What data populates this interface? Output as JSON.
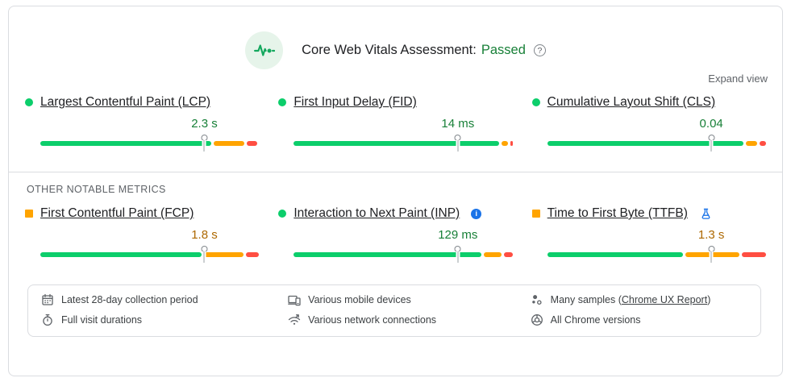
{
  "header": {
    "title": "Core Web Vitals Assessment:",
    "status": "Passed",
    "expand_link": "Expand view"
  },
  "icons": {
    "help": "?",
    "info": "i"
  },
  "other_metrics_label": "OTHER NOTABLE METRICS",
  "colors": {
    "good_bar": "#0cce6b",
    "average_bar": "#ffa400",
    "poor_bar": "#ff4e42",
    "good_text": "#188038",
    "average_text": "#ad6800",
    "passed_text": "#188038",
    "accent_blue": "#1a73e8",
    "badge_bg": "#e6f4ea"
  },
  "metrics": [
    {
      "name": "Largest Contentful Paint (LCP)",
      "value": "2.3 s",
      "rating": "good",
      "bar": {
        "good": 78,
        "average": 14,
        "poor": 5,
        "marker_pct": 75
      }
    },
    {
      "name": "First Input Delay (FID)",
      "value": "14 ms",
      "rating": "good",
      "bar": {
        "good": 94,
        "average": 3,
        "poor": 1,
        "marker_pct": 75
      }
    },
    {
      "name": "Cumulative Layout Shift (CLS)",
      "value": "0.04",
      "rating": "good",
      "bar": {
        "good": 90,
        "average": 5,
        "poor": 3,
        "marker_pct": 75
      }
    },
    {
      "name": "First Contentful Paint (FCP)",
      "value": "1.8 s",
      "rating": "average",
      "bar": {
        "good": 74,
        "average": 18,
        "poor": 6,
        "marker_pct": 75
      }
    },
    {
      "name": "Interaction to Next Paint (INP)",
      "value": "129 ms",
      "rating": "good",
      "extra_icon": "info-icon",
      "bar": {
        "good": 86,
        "average": 8,
        "poor": 4,
        "marker_pct": 75
      }
    },
    {
      "name": "Time to First Byte (TTFB)",
      "value": "1.3 s",
      "rating": "average",
      "extra_icon": "experiment-flask-icon",
      "bar": {
        "good": 62,
        "average": 25,
        "poor": 11,
        "marker_pct": 75
      }
    }
  ],
  "footer": {
    "items": [
      {
        "icon": "calendar-icon",
        "label": "Latest 28-day collection period"
      },
      {
        "icon": "stopwatch-icon",
        "label": "Full visit durations"
      },
      {
        "icon": "devices-icon",
        "label": "Various mobile devices"
      },
      {
        "icon": "network-icon",
        "label": "Various network connections"
      },
      {
        "icon": "samples-icon",
        "prefix": "Many samples (",
        "link": "Chrome UX Report",
        "suffix": ")"
      },
      {
        "icon": "chrome-icon",
        "label": "All Chrome versions"
      }
    ]
  }
}
